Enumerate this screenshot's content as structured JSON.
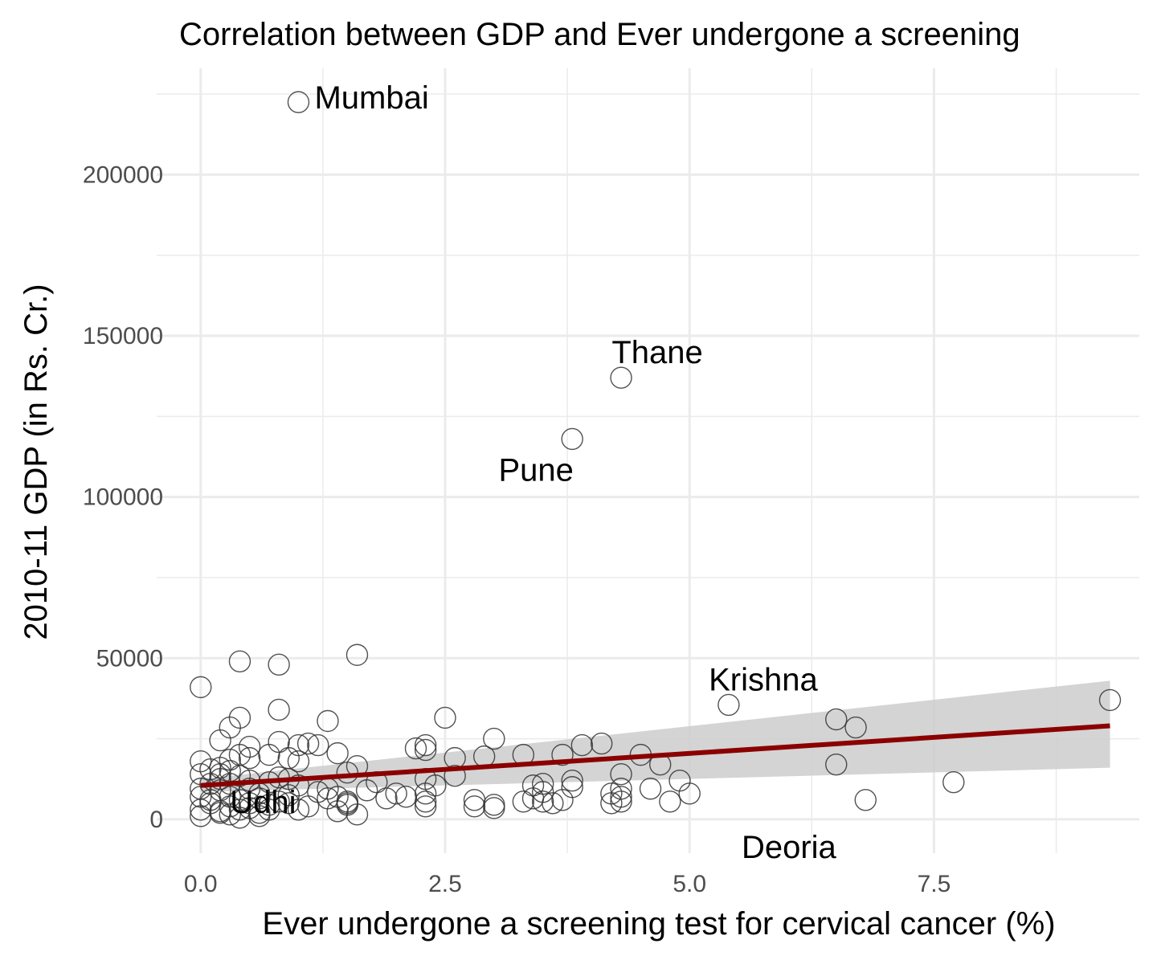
{
  "chart_data": {
    "type": "scatter",
    "title": "Correlation between GDP and Ever undergone a screening",
    "xlabel": "Ever undergone a screening test for cervical cancer (%)",
    "ylabel": "2010-11 GDP (in Rs. Cr.)",
    "xlim": [
      -0.45,
      9.6
    ],
    "ylim": [
      -10500,
      233000
    ],
    "x_ticks": [
      0,
      2.5,
      5,
      7.5
    ],
    "x_tick_labels": [
      "0.0",
      "2.5",
      "5.0",
      "7.5"
    ],
    "y_ticks": [
      0,
      50000,
      100000,
      150000,
      200000
    ],
    "y_tick_labels": [
      "0",
      "50000",
      "100000",
      "150000",
      "200000"
    ],
    "grid": true,
    "point_style": "open-circle",
    "points": [
      [
        1.0,
        222500
      ],
      [
        4.3,
        137000
      ],
      [
        3.8,
        118000
      ],
      [
        5.4,
        35500
      ],
      [
        9.3,
        37000
      ],
      [
        6.5,
        31000
      ],
      [
        6.7,
        28500
      ],
      [
        6.5,
        17000
      ],
      [
        7.7,
        11500
      ],
      [
        6.8,
        6000
      ],
      [
        0.0,
        41000
      ],
      [
        0.4,
        49000
      ],
      [
        0.8,
        48000
      ],
      [
        1.6,
        51000
      ],
      [
        0.8,
        34000
      ],
      [
        1.3,
        30500
      ],
      [
        0.4,
        31500
      ],
      [
        0.3,
        28500
      ],
      [
        0.2,
        24500
      ],
      [
        0.5,
        22500
      ],
      [
        0.8,
        24000
      ],
      [
        1.0,
        23000
      ],
      [
        1.1,
        23500
      ],
      [
        1.2,
        23000
      ],
      [
        0.7,
        20000
      ],
      [
        0.9,
        19000
      ],
      [
        1.0,
        18000
      ],
      [
        1.4,
        20500
      ],
      [
        1.6,
        16500
      ],
      [
        1.5,
        14500
      ],
      [
        0.0,
        18000
      ],
      [
        0.0,
        14000
      ],
      [
        0.2,
        16000
      ],
      [
        0.3,
        15000
      ],
      [
        0.5,
        12000
      ],
      [
        0.1,
        11000
      ],
      [
        0.0,
        9500
      ],
      [
        0.0,
        7000
      ],
      [
        0.1,
        5000
      ],
      [
        0.0,
        3000
      ],
      [
        0.0,
        1000
      ],
      [
        0.2,
        2500
      ],
      [
        0.3,
        4000
      ],
      [
        0.4,
        6000
      ],
      [
        0.5,
        3500
      ],
      [
        0.6,
        2000
      ],
      [
        0.7,
        4500
      ],
      [
        0.8,
        5500
      ],
      [
        0.9,
        7500
      ],
      [
        1.0,
        3000
      ],
      [
        1.1,
        4000
      ],
      [
        1.2,
        8500
      ],
      [
        1.3,
        6500
      ],
      [
        1.4,
        2500
      ],
      [
        1.5,
        4500
      ],
      [
        1.6,
        1500
      ],
      [
        1.7,
        9000
      ],
      [
        1.8,
        11500
      ],
      [
        1.9,
        6500
      ],
      [
        2.0,
        8000
      ],
      [
        2.1,
        7000
      ],
      [
        2.2,
        22000
      ],
      [
        2.3,
        21500
      ],
      [
        2.3,
        23000
      ],
      [
        2.3,
        12500
      ],
      [
        2.3,
        5500
      ],
      [
        2.3,
        4000
      ],
      [
        2.3,
        8000
      ],
      [
        2.4,
        10500
      ],
      [
        2.5,
        31500
      ],
      [
        2.6,
        19000
      ],
      [
        2.6,
        13500
      ],
      [
        2.8,
        6000
      ],
      [
        2.8,
        4000
      ],
      [
        2.9,
        19500
      ],
      [
        3.0,
        25000
      ],
      [
        3.0,
        4500
      ],
      [
        3.0,
        3500
      ],
      [
        3.3,
        20000
      ],
      [
        3.3,
        5500
      ],
      [
        3.4,
        6500
      ],
      [
        3.4,
        10500
      ],
      [
        3.5,
        8500
      ],
      [
        3.5,
        11000
      ],
      [
        3.5,
        5500
      ],
      [
        3.6,
        5000
      ],
      [
        3.7,
        20000
      ],
      [
        3.7,
        6000
      ],
      [
        3.8,
        12000
      ],
      [
        3.8,
        10000
      ],
      [
        3.9,
        23000
      ],
      [
        4.1,
        23500
      ],
      [
        4.2,
        8000
      ],
      [
        4.2,
        5000
      ],
      [
        4.3,
        14000
      ],
      [
        4.3,
        9500
      ],
      [
        4.3,
        7000
      ],
      [
        4.3,
        5500
      ],
      [
        4.5,
        20000
      ],
      [
        4.6,
        9500
      ],
      [
        4.7,
        17000
      ],
      [
        4.8,
        5500
      ],
      [
        4.9,
        12000
      ],
      [
        5.0,
        8000
      ],
      [
        0.1,
        6000
      ],
      [
        0.2,
        9000
      ],
      [
        0.3,
        11000
      ],
      [
        0.4,
        13500
      ],
      [
        0.5,
        9500
      ],
      [
        0.6,
        8000
      ],
      [
        0.7,
        11500
      ],
      [
        0.8,
        13000
      ],
      [
        0.9,
        12500
      ],
      [
        0.2,
        14000
      ],
      [
        0.3,
        7000
      ],
      [
        0.4,
        3000
      ],
      [
        0.5,
        5000
      ],
      [
        0.6,
        6500
      ],
      [
        0.7,
        3000
      ],
      [
        0.1,
        15500
      ],
      [
        0.2,
        12500
      ],
      [
        0.3,
        18500
      ],
      [
        0.4,
        20000
      ],
      [
        0.5,
        19000
      ],
      [
        1.3,
        9500
      ],
      [
        1.4,
        7000
      ],
      [
        1.5,
        5500
      ],
      [
        1.0,
        10500
      ],
      [
        0.9,
        5000
      ],
      [
        0.2,
        2000
      ],
      [
        0.3,
        1500
      ],
      [
        0.4,
        500
      ],
      [
        0.6,
        1000
      ],
      [
        1.5,
        5000
      ]
    ],
    "labels": [
      {
        "text": "Mumbai",
        "x": 1.0,
        "y": 222500
      },
      {
        "text": "Thane",
        "x": 4.3,
        "y": 137000
      },
      {
        "text": "Pune",
        "x": 3.8,
        "y": 118000
      },
      {
        "text": "Krishna",
        "x": 5.4,
        "y": 35500
      },
      {
        "text": "Deoria",
        "x": 5.4,
        "y": -1500
      },
      {
        "text": "Udhi",
        "x": 0.3,
        "y": 5500
      }
    ],
    "regression_line": {
      "x": [
        0.0,
        9.3
      ],
      "y": [
        10500,
        29000
      ],
      "color": "#8b0000"
    },
    "confidence_band": {
      "x": [
        0.0,
        9.3
      ],
      "lower": [
        8500,
        16000
      ],
      "upper": [
        12500,
        43000
      ],
      "color": "#cccccc"
    }
  }
}
